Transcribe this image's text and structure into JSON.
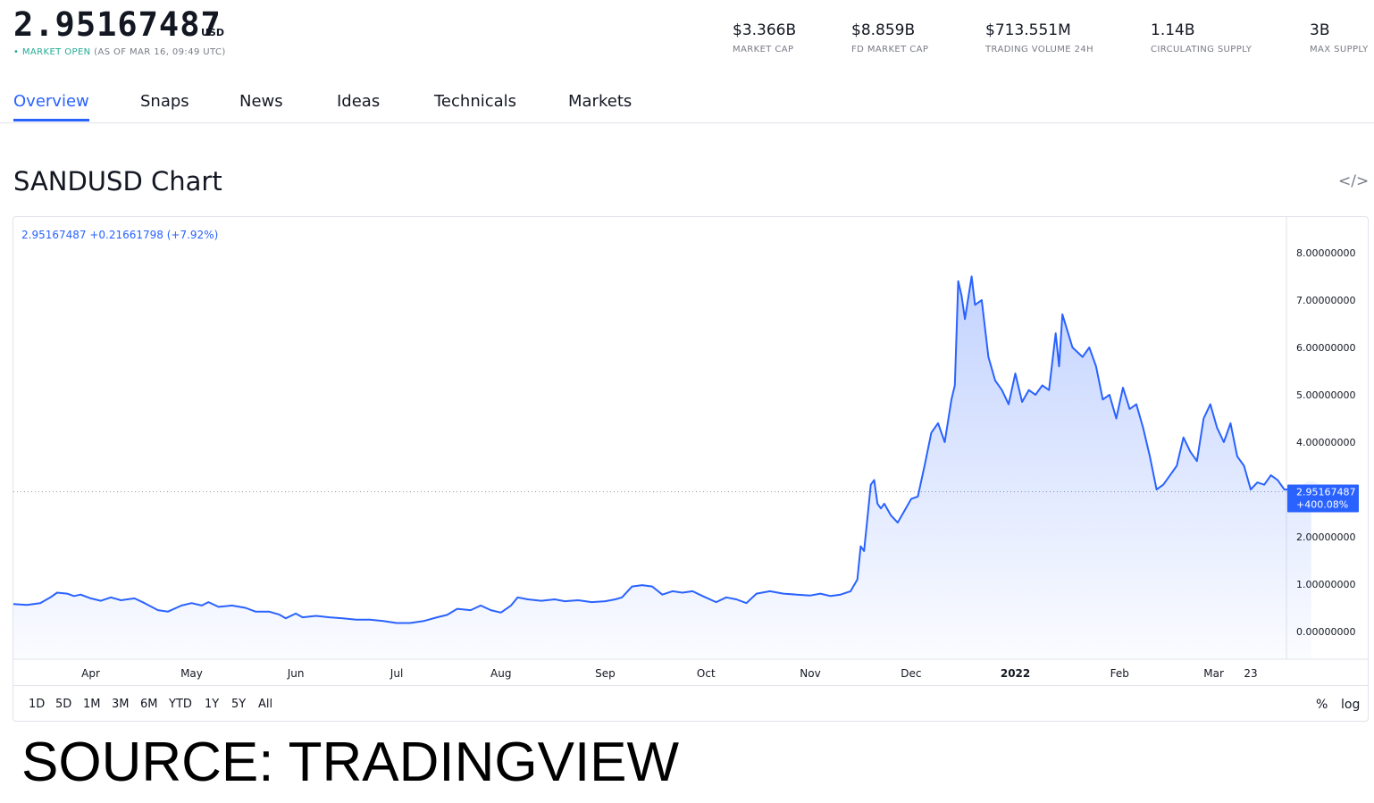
{
  "header": {
    "price": "2.95167487",
    "currency": "USD",
    "status_open": "• MARKET OPEN",
    "status_time": "(AS OF MAR 16, 09:49 UTC)"
  },
  "stats": [
    {
      "value": "$3.366B",
      "label": "MARKET CAP"
    },
    {
      "value": "$8.859B",
      "label": "FD MARKET CAP"
    },
    {
      "value": "$713.551M",
      "label": "TRADING VOLUME 24H"
    },
    {
      "value": "1.14B",
      "label": "CIRCULATING SUPPLY"
    },
    {
      "value": "3B",
      "label": "MAX SUPPLY"
    }
  ],
  "tabs": [
    "Overview",
    "Snaps",
    "News",
    "Ideas",
    "Technicals",
    "Markets"
  ],
  "active_tab": "Overview",
  "chart_title": "SANDUSD Chart",
  "embed_icon": "code-embed-icon",
  "legend": "2.95167487  +0.21661798 (+7.92%)",
  "price_label": {
    "value": "2.95167487",
    "change": "+400.08%"
  },
  "ranges": [
    "1D",
    "5D",
    "1M",
    "3M",
    "6M",
    "YTD",
    "1Y",
    "5Y",
    "All"
  ],
  "options": {
    "percent": "%",
    "log": "log"
  },
  "source": "SOURCE: TRADINGVIEW",
  "colors": {
    "accent": "#2962ff",
    "line": "#2962ff",
    "open": "#22ab94",
    "text": "#131722",
    "muted": "#787b86"
  },
  "chart_data": {
    "type": "area",
    "title": "",
    "xlabel": "",
    "ylabel": "",
    "x_ticks": [
      "Apr",
      "May",
      "Jun",
      "Jul",
      "Aug",
      "Sep",
      "Oct",
      "Nov",
      "Dec",
      "2022",
      "Feb",
      "Mar",
      "23"
    ],
    "x_ticks_bold": [
      "2022"
    ],
    "y_ticks": [
      "8.00000000",
      "7.00000000",
      "6.00000000",
      "5.00000000",
      "4.00000000",
      "2.00000000",
      "1.00000000",
      "0.00000000"
    ],
    "ylim": [
      -0.6,
      8.5
    ],
    "x_range": [
      "2021-03-23",
      "2022-03-26"
    ],
    "grid": false,
    "series": [
      {
        "points": [
          [
            "2021-03-23",
            0.58
          ],
          [
            "2021-03-27",
            0.56
          ],
          [
            "2021-03-31",
            0.6
          ],
          [
            "2021-04-03",
            0.72
          ],
          [
            "2021-04-05",
            0.82
          ],
          [
            "2021-04-08",
            0.8
          ],
          [
            "2021-04-10",
            0.75
          ],
          [
            "2021-04-12",
            0.78
          ],
          [
            "2021-04-15",
            0.7
          ],
          [
            "2021-04-18",
            0.65
          ],
          [
            "2021-04-21",
            0.72
          ],
          [
            "2021-04-24",
            0.66
          ],
          [
            "2021-04-28",
            0.7
          ],
          [
            "2021-05-01",
            0.6
          ],
          [
            "2021-05-05",
            0.45
          ],
          [
            "2021-05-08",
            0.42
          ],
          [
            "2021-05-12",
            0.55
          ],
          [
            "2021-05-15",
            0.6
          ],
          [
            "2021-05-18",
            0.55
          ],
          [
            "2021-05-20",
            0.62
          ],
          [
            "2021-05-23",
            0.52
          ],
          [
            "2021-05-27",
            0.55
          ],
          [
            "2021-05-31",
            0.5
          ],
          [
            "2021-06-03",
            0.42
          ],
          [
            "2021-06-07",
            0.42
          ],
          [
            "2021-06-10",
            0.36
          ],
          [
            "2021-06-12",
            0.28
          ],
          [
            "2021-06-15",
            0.38
          ],
          [
            "2021-06-17",
            0.3
          ],
          [
            "2021-06-21",
            0.33
          ],
          [
            "2021-06-25",
            0.3
          ],
          [
            "2021-06-29",
            0.28
          ],
          [
            "2021-07-03",
            0.25
          ],
          [
            "2021-07-07",
            0.25
          ],
          [
            "2021-07-11",
            0.22
          ],
          [
            "2021-07-15",
            0.18
          ],
          [
            "2021-07-19",
            0.18
          ],
          [
            "2021-07-23",
            0.22
          ],
          [
            "2021-07-27",
            0.3
          ],
          [
            "2021-07-30",
            0.35
          ],
          [
            "2021-08-02",
            0.48
          ],
          [
            "2021-08-06",
            0.45
          ],
          [
            "2021-08-09",
            0.55
          ],
          [
            "2021-08-12",
            0.45
          ],
          [
            "2021-08-15",
            0.4
          ],
          [
            "2021-08-18",
            0.55
          ],
          [
            "2021-08-20",
            0.72
          ],
          [
            "2021-08-23",
            0.68
          ],
          [
            "2021-08-27",
            0.65
          ],
          [
            "2021-08-31",
            0.68
          ],
          [
            "2021-09-03",
            0.64
          ],
          [
            "2021-09-07",
            0.66
          ],
          [
            "2021-09-11",
            0.62
          ],
          [
            "2021-09-15",
            0.64
          ],
          [
            "2021-09-18",
            0.68
          ],
          [
            "2021-09-20",
            0.72
          ],
          [
            "2021-09-23",
            0.95
          ],
          [
            "2021-09-26",
            0.98
          ],
          [
            "2021-09-29",
            0.95
          ],
          [
            "2021-10-02",
            0.78
          ],
          [
            "2021-10-05",
            0.85
          ],
          [
            "2021-10-08",
            0.82
          ],
          [
            "2021-10-11",
            0.85
          ],
          [
            "2021-10-14",
            0.75
          ],
          [
            "2021-10-18",
            0.62
          ],
          [
            "2021-10-21",
            0.72
          ],
          [
            "2021-10-24",
            0.68
          ],
          [
            "2021-10-27",
            0.6
          ],
          [
            "2021-10-30",
            0.8
          ],
          [
            "2021-11-03",
            0.85
          ],
          [
            "2021-11-07",
            0.8
          ],
          [
            "2021-11-11",
            0.78
          ],
          [
            "2021-11-15",
            0.76
          ],
          [
            "2021-11-18",
            0.8
          ],
          [
            "2021-11-21",
            0.75
          ],
          [
            "2021-11-24",
            0.78
          ],
          [
            "2021-11-27",
            0.85
          ],
          [
            "2021-11-29",
            1.1
          ],
          [
            "2021-11-30",
            1.8
          ],
          [
            "2021-12-01",
            1.7
          ],
          [
            "2021-12-02",
            2.4
          ],
          [
            "2021-12-03",
            3.1
          ],
          [
            "2021-12-04",
            3.2
          ],
          [
            "2021-12-05",
            2.7
          ],
          [
            "2021-12-06",
            2.6
          ],
          [
            "2021-12-07",
            2.7
          ],
          [
            "2021-12-09",
            2.45
          ],
          [
            "2021-12-11",
            2.3
          ],
          [
            "2021-12-13",
            2.55
          ],
          [
            "2021-12-15",
            2.8
          ],
          [
            "2021-12-17",
            2.85
          ],
          [
            "2021-12-19",
            3.5
          ],
          [
            "2021-12-21",
            4.2
          ],
          [
            "2021-12-23",
            4.4
          ],
          [
            "2021-12-25",
            4.0
          ],
          [
            "2021-12-27",
            4.9
          ],
          [
            "2021-12-28",
            5.2
          ],
          [
            "2021-12-29",
            7.4
          ],
          [
            "2021-12-30",
            7.1
          ],
          [
            "2021-12-31",
            6.6
          ],
          [
            "2022-01-02",
            7.5
          ],
          [
            "2022-01-03",
            6.9
          ],
          [
            "2022-01-05",
            7.0
          ],
          [
            "2022-01-07",
            5.8
          ],
          [
            "2022-01-09",
            5.3
          ],
          [
            "2022-01-11",
            5.1
          ],
          [
            "2022-01-13",
            4.8
          ],
          [
            "2022-01-15",
            5.45
          ],
          [
            "2022-01-17",
            4.85
          ],
          [
            "2022-01-19",
            5.1
          ],
          [
            "2022-01-21",
            5.0
          ],
          [
            "2022-01-23",
            5.2
          ],
          [
            "2022-01-25",
            5.1
          ],
          [
            "2022-01-27",
            6.3
          ],
          [
            "2022-01-28",
            5.6
          ],
          [
            "2022-01-29",
            6.7
          ],
          [
            "2022-02-01",
            6.0
          ],
          [
            "2022-02-04",
            5.8
          ],
          [
            "2022-02-06",
            6.0
          ],
          [
            "2022-02-08",
            5.6
          ],
          [
            "2022-02-10",
            4.9
          ],
          [
            "2022-02-12",
            5.0
          ],
          [
            "2022-02-14",
            4.5
          ],
          [
            "2022-02-16",
            5.15
          ],
          [
            "2022-02-18",
            4.7
          ],
          [
            "2022-02-20",
            4.8
          ],
          [
            "2022-02-22",
            4.3
          ],
          [
            "2022-02-24",
            3.7
          ],
          [
            "2022-02-26",
            3.0
          ],
          [
            "2022-02-28",
            3.1
          ],
          [
            "2022-03-02",
            3.3
          ],
          [
            "2022-03-04",
            3.5
          ],
          [
            "2022-03-06",
            4.1
          ],
          [
            "2022-03-08",
            3.8
          ],
          [
            "2022-03-10",
            3.6
          ],
          [
            "2022-03-12",
            4.5
          ],
          [
            "2022-03-14",
            4.8
          ],
          [
            "2022-03-16",
            4.3
          ],
          [
            "2022-03-18",
            4.0
          ],
          [
            "2022-03-20",
            4.4
          ],
          [
            "2022-03-22",
            3.7
          ],
          [
            "2022-03-24",
            3.5
          ],
          [
            "2022-03-26",
            3.0
          ],
          [
            "2022-03-28",
            3.15
          ],
          [
            "2022-03-30",
            3.1
          ],
          [
            "2022-04-01",
            3.3
          ],
          [
            "2022-04-03",
            3.2
          ],
          [
            "2022-04-05",
            3.0
          ],
          [
            "2022-04-07",
            3.0
          ],
          [
            "2022-04-09",
            2.95
          ],
          [
            "2022-04-11",
            2.95
          ],
          [
            "2022-04-13",
            2.95167487
          ]
        ]
      }
    ]
  }
}
